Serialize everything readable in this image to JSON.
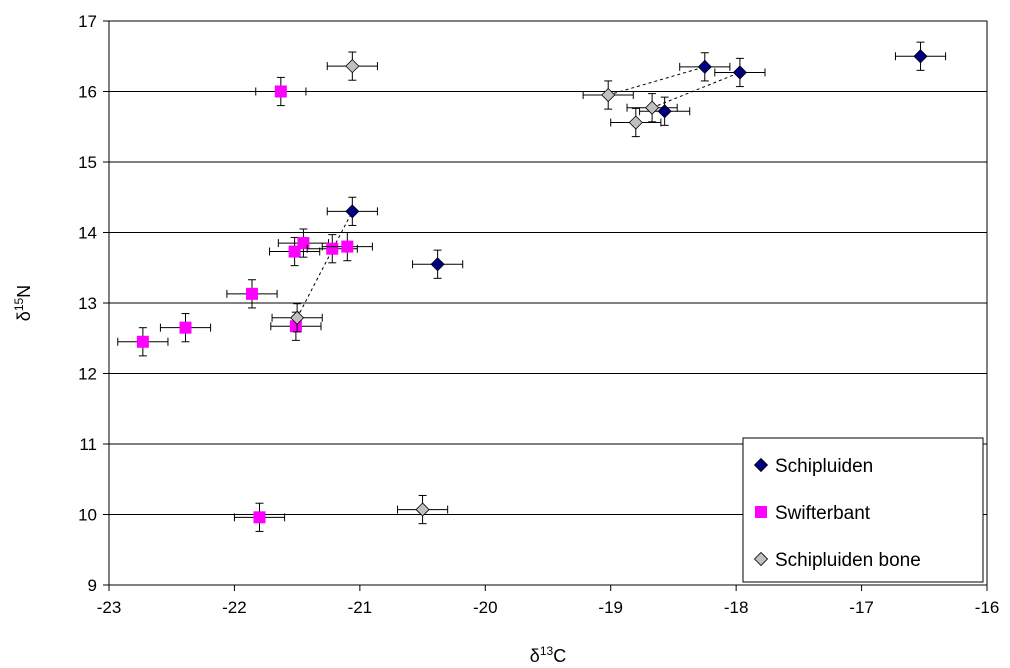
{
  "chart_data": {
    "type": "scatter",
    "xlabel_main": "δ",
    "xlabel_sup": "13",
    "xlabel_end": "C",
    "ylabel_main": "δ",
    "ylabel_sup": "15",
    "ylabel_end": "N",
    "xlim": [
      -23,
      -16
    ],
    "ylim": [
      9,
      17
    ],
    "xticks": [
      "-23",
      "-22",
      "-21",
      "-20",
      "-19",
      "-18",
      "-17",
      "-16"
    ],
    "yticks": [
      "9",
      "10",
      "11",
      "12",
      "13",
      "14",
      "15",
      "16",
      "17"
    ],
    "grid": "horizontal",
    "legend_position": "bottom-right",
    "error_bar": {
      "x": 0.2,
      "y": 0.2
    },
    "series": [
      {
        "name": "Schipluiden",
        "marker": "diamond",
        "color": "#000080",
        "points": [
          [
            -18.25,
            16.35
          ],
          [
            -17.97,
            16.27
          ],
          [
            -18.57,
            15.72
          ],
          [
            -16.53,
            16.5
          ],
          [
            -21.06,
            14.3
          ],
          [
            -20.38,
            13.55
          ]
        ]
      },
      {
        "name": "Swifterbant",
        "marker": "square",
        "color": "#ff00ff",
        "points": [
          [
            -21.63,
            16.0
          ],
          [
            -21.52,
            13.73
          ],
          [
            -21.45,
            13.85
          ],
          [
            -21.22,
            13.77
          ],
          [
            -21.1,
            13.8
          ],
          [
            -21.86,
            13.13
          ],
          [
            -21.51,
            12.67
          ],
          [
            -22.39,
            12.65
          ],
          [
            -22.73,
            12.45
          ],
          [
            -21.8,
            9.96
          ]
        ]
      },
      {
        "name": "Schipluiden bone",
        "marker": "diamond",
        "color": "#c0c0c0",
        "points": [
          [
            -21.06,
            16.36
          ],
          [
            -19.02,
            15.95
          ],
          [
            -18.67,
            15.77
          ],
          [
            -18.8,
            15.56
          ],
          [
            -21.5,
            12.79
          ],
          [
            -20.5,
            10.07
          ]
        ]
      }
    ],
    "connectors": [
      [
        [
          -19.02,
          15.95
        ],
        [
          -18.25,
          16.35
        ]
      ],
      [
        [
          -18.67,
          15.77
        ],
        [
          -17.97,
          16.27
        ]
      ],
      [
        [
          -21.5,
          12.79
        ],
        [
          -21.06,
          14.3
        ]
      ]
    ]
  }
}
